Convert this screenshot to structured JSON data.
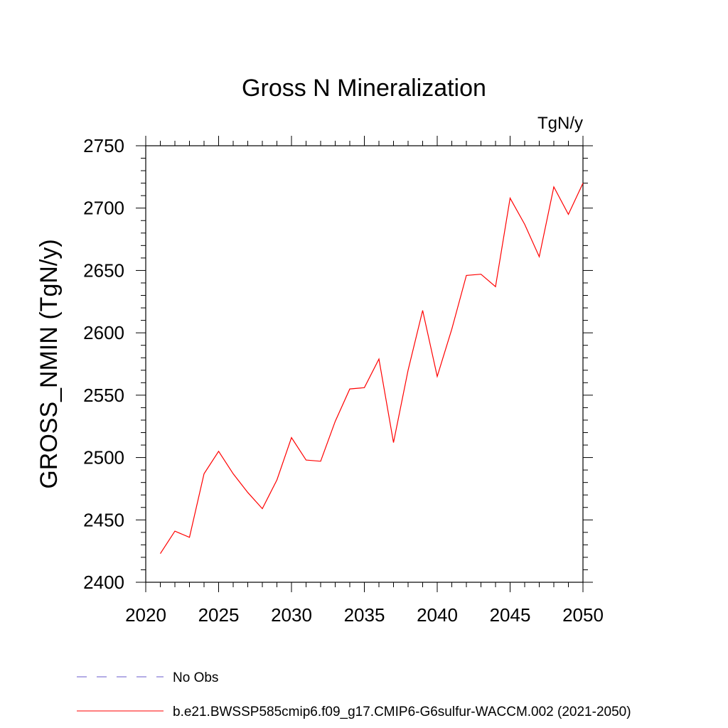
{
  "chart_data": {
    "type": "line",
    "title": "Gross N Mineralization",
    "units_label": "TgN/y",
    "ylabel": "GROSS_NMIN  (TgN/y)",
    "xlabel": "",
    "xlim": [
      2020,
      2050
    ],
    "ylim": [
      2400,
      2750
    ],
    "x_ticks": [
      2020,
      2025,
      2030,
      2035,
      2040,
      2045,
      2050
    ],
    "y_ticks": [
      2400,
      2450,
      2500,
      2550,
      2600,
      2650,
      2700,
      2750
    ],
    "grid": false,
    "series": [
      {
        "name": "b.e21.BWSSP585cmip6.f09_g17.CMIP6-G6sulfur-WACCM.002 (2021-2050)",
        "color": "#ff0000",
        "x": [
          2021,
          2022,
          2023,
          2024,
          2025,
          2026,
          2027,
          2028,
          2029,
          2030,
          2031,
          2032,
          2033,
          2034,
          2035,
          2036,
          2037,
          2038,
          2039,
          2040,
          2041,
          2042,
          2043,
          2044,
          2045,
          2046,
          2047,
          2048,
          2049,
          2050
        ],
        "y": [
          2423,
          2441,
          2436,
          2487,
          2505,
          2487,
          2472,
          2459,
          2482,
          2516,
          2498,
          2497,
          2529,
          2555,
          2556,
          2579,
          2512,
          2570,
          2618,
          2565,
          2603,
          2646,
          2647,
          2637,
          2708,
          2687,
          2661,
          2717,
          2695,
          2720
        ]
      }
    ],
    "legend": {
      "placement": "bottom",
      "entries": [
        {
          "label": "No Obs",
          "color": "#6a5acd",
          "style": "dashed"
        },
        {
          "label": "b.e21.BWSSP585cmip6.f09_g17.CMIP6-G6sulfur-WACCM.002 (2021-2050)",
          "color": "#ff0000",
          "style": "solid"
        }
      ]
    }
  }
}
